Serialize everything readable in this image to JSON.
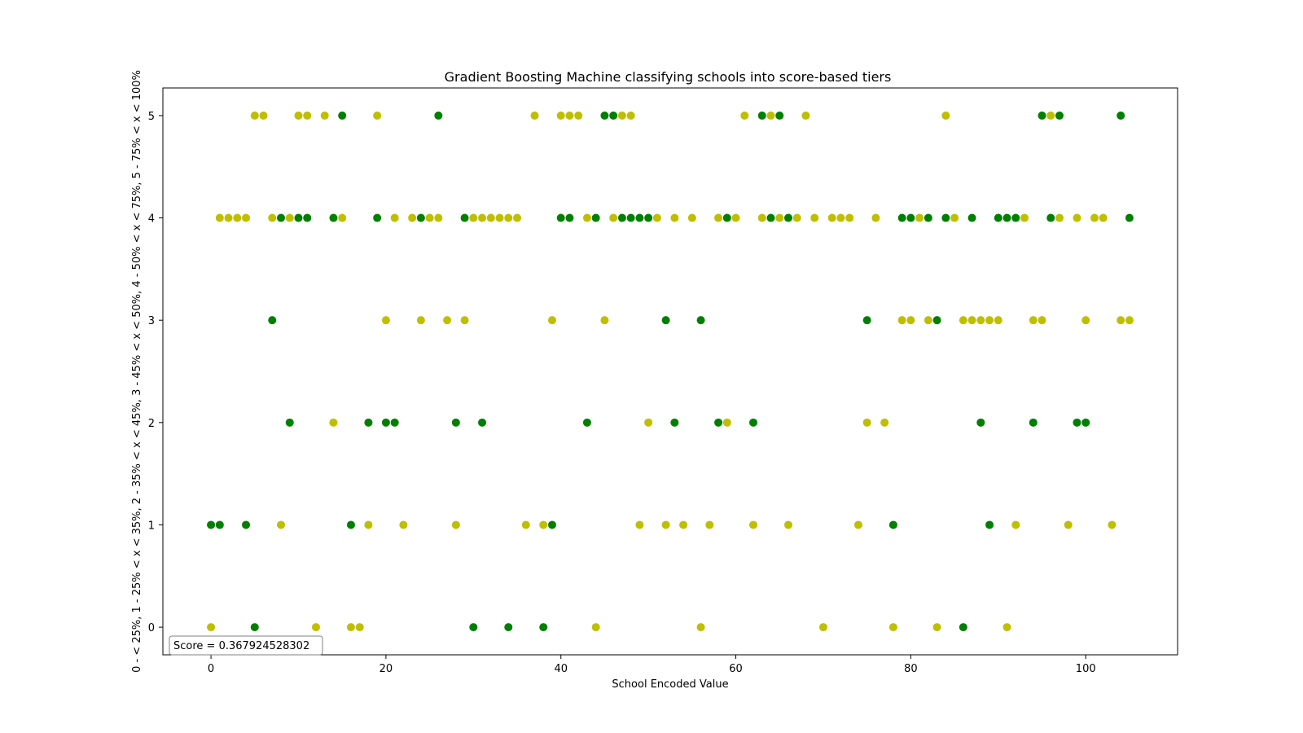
{
  "chart_data": {
    "type": "scatter",
    "title": "Gradient Boosting Machine classifying schools into score-based tiers",
    "xlabel": "School Encoded Value",
    "ylabel": "0 - < 25%, 1 - 25% < x < 35%, 2 - 35% < x < 45%, 3 - 45% < x < 50%, 4 - 50% < x < 75%, 5 - 75% < x < 100%",
    "xlim": [
      -5.5,
      110.5
    ],
    "ylim": [
      -0.27,
      5.27
    ],
    "xticks": [
      0,
      20,
      40,
      60,
      80,
      100
    ],
    "yticks": [
      0,
      1,
      2,
      3,
      4,
      5
    ],
    "grid": false,
    "legend": "none",
    "annotation": "Score = 0.367924528302",
    "colors": {
      "green": "#008000",
      "yellow": "#bfbf00"
    },
    "series": [
      {
        "color": "#008000",
        "points": [
          [
            15,
            5
          ],
          [
            26,
            5
          ],
          [
            45,
            5
          ],
          [
            46,
            5
          ],
          [
            63,
            5
          ],
          [
            65,
            5
          ],
          [
            95,
            5
          ],
          [
            97,
            5
          ],
          [
            104,
            5
          ],
          [
            8,
            4
          ],
          [
            10,
            4
          ],
          [
            11,
            4
          ],
          [
            14,
            4
          ],
          [
            19,
            4
          ],
          [
            24,
            4
          ],
          [
            29,
            4
          ],
          [
            40,
            4
          ],
          [
            41,
            4
          ],
          [
            44,
            4
          ],
          [
            47,
            4
          ],
          [
            48,
            4
          ],
          [
            49,
            4
          ],
          [
            50,
            4
          ],
          [
            59,
            4
          ],
          [
            64,
            4
          ],
          [
            66,
            4
          ],
          [
            79,
            4
          ],
          [
            80,
            4
          ],
          [
            82,
            4
          ],
          [
            84,
            4
          ],
          [
            87,
            4
          ],
          [
            90,
            4
          ],
          [
            91,
            4
          ],
          [
            92,
            4
          ],
          [
            96,
            4
          ],
          [
            105,
            4
          ],
          [
            7,
            3
          ],
          [
            52,
            3
          ],
          [
            56,
            3
          ],
          [
            75,
            3
          ],
          [
            83,
            3
          ],
          [
            9,
            2
          ],
          [
            18,
            2
          ],
          [
            20,
            2
          ],
          [
            21,
            2
          ],
          [
            28,
            2
          ],
          [
            31,
            2
          ],
          [
            43,
            2
          ],
          [
            53,
            2
          ],
          [
            58,
            2
          ],
          [
            62,
            2
          ],
          [
            88,
            2
          ],
          [
            94,
            2
          ],
          [
            99,
            2
          ],
          [
            100,
            2
          ],
          [
            0,
            1
          ],
          [
            1,
            1
          ],
          [
            4,
            1
          ],
          [
            16,
            1
          ],
          [
            39,
            1
          ],
          [
            78,
            1
          ],
          [
            89,
            1
          ],
          [
            5,
            0
          ],
          [
            30,
            0
          ],
          [
            34,
            0
          ],
          [
            38,
            0
          ],
          [
            86,
            0
          ]
        ]
      },
      {
        "color": "#bfbf00",
        "points": [
          [
            5,
            5
          ],
          [
            6,
            5
          ],
          [
            10,
            5
          ],
          [
            11,
            5
          ],
          [
            13,
            5
          ],
          [
            19,
            5
          ],
          [
            37,
            5
          ],
          [
            40,
            5
          ],
          [
            41,
            5
          ],
          [
            42,
            5
          ],
          [
            47,
            5
          ],
          [
            48,
            5
          ],
          [
            61,
            5
          ],
          [
            64,
            5
          ],
          [
            68,
            5
          ],
          [
            84,
            5
          ],
          [
            96,
            5
          ],
          [
            1,
            4
          ],
          [
            2,
            4
          ],
          [
            3,
            4
          ],
          [
            4,
            4
          ],
          [
            7,
            4
          ],
          [
            9,
            4
          ],
          [
            15,
            4
          ],
          [
            21,
            4
          ],
          [
            23,
            4
          ],
          [
            25,
            4
          ],
          [
            26,
            4
          ],
          [
            30,
            4
          ],
          [
            31,
            4
          ],
          [
            32,
            4
          ],
          [
            33,
            4
          ],
          [
            34,
            4
          ],
          [
            35,
            4
          ],
          [
            43,
            4
          ],
          [
            46,
            4
          ],
          [
            51,
            4
          ],
          [
            53,
            4
          ],
          [
            55,
            4
          ],
          [
            58,
            4
          ],
          [
            60,
            4
          ],
          [
            63,
            4
          ],
          [
            65,
            4
          ],
          [
            67,
            4
          ],
          [
            69,
            4
          ],
          [
            71,
            4
          ],
          [
            72,
            4
          ],
          [
            73,
            4
          ],
          [
            76,
            4
          ],
          [
            81,
            4
          ],
          [
            85,
            4
          ],
          [
            93,
            4
          ],
          [
            97,
            4
          ],
          [
            99,
            4
          ],
          [
            101,
            4
          ],
          [
            102,
            4
          ],
          [
            20,
            3
          ],
          [
            24,
            3
          ],
          [
            27,
            3
          ],
          [
            29,
            3
          ],
          [
            39,
            3
          ],
          [
            45,
            3
          ],
          [
            79,
            3
          ],
          [
            80,
            3
          ],
          [
            82,
            3
          ],
          [
            86,
            3
          ],
          [
            87,
            3
          ],
          [
            88,
            3
          ],
          [
            89,
            3
          ],
          [
            90,
            3
          ],
          [
            94,
            3
          ],
          [
            95,
            3
          ],
          [
            100,
            3
          ],
          [
            104,
            3
          ],
          [
            105,
            3
          ],
          [
            14,
            2
          ],
          [
            50,
            2
          ],
          [
            59,
            2
          ],
          [
            75,
            2
          ],
          [
            77,
            2
          ],
          [
            8,
            1
          ],
          [
            18,
            1
          ],
          [
            22,
            1
          ],
          [
            28,
            1
          ],
          [
            36,
            1
          ],
          [
            38,
            1
          ],
          [
            49,
            1
          ],
          [
            52,
            1
          ],
          [
            54,
            1
          ],
          [
            57,
            1
          ],
          [
            62,
            1
          ],
          [
            66,
            1
          ],
          [
            74,
            1
          ],
          [
            92,
            1
          ],
          [
            98,
            1
          ],
          [
            103,
            1
          ],
          [
            0,
            0
          ],
          [
            12,
            0
          ],
          [
            16,
            0
          ],
          [
            17,
            0
          ],
          [
            44,
            0
          ],
          [
            56,
            0
          ],
          [
            70,
            0
          ],
          [
            78,
            0
          ],
          [
            83,
            0
          ],
          [
            91,
            0
          ]
        ]
      }
    ]
  }
}
